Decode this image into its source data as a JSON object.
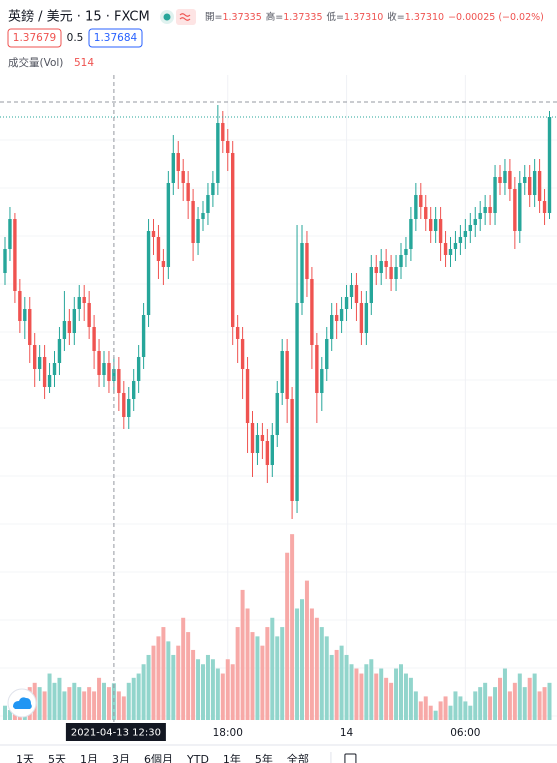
{
  "chart_data": {
    "type": "candlestick",
    "title": "英鎊 / 美元 · 15 · FXCM",
    "ohlc_header": [
      {
        "label": "開=",
        "value": "1.37335"
      },
      {
        "label": "高=",
        "value": "1.37335"
      },
      {
        "label": "低=",
        "value": "1.37310"
      },
      {
        "label": "收=",
        "value": "1.37310"
      }
    ],
    "change": "−0.00025 (−0.02%)",
    "bid": "1.37679",
    "spread": "0.5",
    "ask": "1.37684",
    "volume_label": "成交量(Vol)",
    "crosshair_label": "2021-04-13  12:30",
    "up_color": "#26a69a",
    "down_color": "#ef5350",
    "volume_up_color": "#92d5cc",
    "volume_down_color": "#f7a9a7",
    "ylim": [
      1.3662,
      1.3734
    ],
    "volume_ylim": [
      0,
      2700
    ],
    "categories": [
      null,
      null,
      null,
      null,
      null,
      null,
      null,
      null,
      null,
      null,
      null,
      null,
      null,
      null,
      null,
      null,
      null,
      null,
      null,
      null,
      null,
      null,
      null,
      null,
      null,
      null,
      null,
      null,
      null,
      null,
      null,
      null,
      null,
      null,
      null,
      null,
      null,
      null,
      null,
      null,
      null,
      null,
      null,
      null,
      null,
      "18:00",
      null,
      null,
      null,
      null,
      null,
      null,
      null,
      null,
      null,
      null,
      null,
      null,
      null,
      null,
      null,
      null,
      null,
      null,
      null,
      null,
      null,
      null,
      null,
      "14",
      null,
      null,
      null,
      null,
      null,
      null,
      null,
      null,
      null,
      null,
      null,
      null,
      null,
      null,
      null,
      null,
      null,
      null,
      null,
      null,
      null,
      null,
      null,
      "06:00",
      null,
      null,
      null,
      null,
      null,
      null,
      null,
      null,
      null,
      null,
      null,
      null,
      null,
      null,
      null,
      null,
      null
    ],
    "open": [
      1.3704,
      1.3708,
      1.3713,
      1.3701,
      1.3696,
      1.3698,
      1.3692,
      1.3688,
      1.369,
      1.3685,
      1.3687,
      1.3689,
      1.3693,
      1.3696,
      1.3694,
      1.3698,
      1.37,
      1.3699,
      1.3695,
      1.3691,
      1.3687,
      1.3689,
      1.3686,
      1.3688,
      1.3684,
      1.368,
      1.3683,
      1.3686,
      1.369,
      1.3697,
      1.3711,
      1.371,
      1.3706,
      1.3705,
      1.3719,
      1.3724,
      1.3721,
      1.3719,
      1.3716,
      1.3709,
      1.3713,
      1.3714,
      1.3717,
      1.3719,
      1.3729,
      1.3726,
      1.3724,
      1.3695,
      1.3693,
      1.3688,
      1.3679,
      1.3674,
      1.3677,
      1.3676,
      1.3672,
      1.3677,
      1.3684,
      1.3691,
      1.3683,
      1.3666,
      1.3699,
      1.3709,
      1.3703,
      1.3692,
      1.3684,
      1.3688,
      1.3693,
      1.3697,
      1.3696,
      1.3698,
      1.37,
      1.3702,
      1.3699,
      1.3694,
      1.3699,
      1.3705,
      1.3704,
      1.3706,
      1.3705,
      1.3703,
      1.3705,
      1.3707,
      1.3708,
      1.3713,
      1.3717,
      1.3715,
      1.3713,
      1.3711,
      1.3713,
      1.3709,
      1.3707,
      1.3708,
      1.3709,
      1.371,
      1.3711,
      1.3712,
      1.3713,
      1.3714,
      1.3715,
      1.3714,
      1.372,
      1.3719,
      1.3721,
      1.3718,
      1.3711,
      1.3719,
      1.372,
      1.3717,
      1.3721,
      1.3716,
      1.3714
    ],
    "high": [
      1.371,
      1.3715,
      1.3714,
      1.3703,
      1.37,
      1.37,
      1.3694,
      1.3692,
      1.3692,
      1.3689,
      1.3691,
      1.3695,
      1.3701,
      1.3698,
      1.37,
      1.3702,
      1.3702,
      1.3701,
      1.3697,
      1.3693,
      1.3691,
      1.3691,
      1.369,
      1.369,
      1.3686,
      1.3685,
      1.3688,
      1.3692,
      1.3699,
      1.3713,
      1.3713,
      1.3712,
      1.3708,
      1.3721,
      1.3727,
      1.3726,
      1.3723,
      1.3721,
      1.3718,
      1.3715,
      1.3716,
      1.3719,
      1.3721,
      1.3732,
      1.3731,
      1.3728,
      1.3726,
      1.3697,
      1.3695,
      1.369,
      1.3681,
      1.3679,
      1.3679,
      1.3678,
      1.3679,
      1.3686,
      1.3693,
      1.3693,
      1.3685,
      1.3712,
      1.3712,
      1.3711,
      1.3705,
      1.3694,
      1.369,
      1.3695,
      1.3699,
      1.3699,
      1.37,
      1.3702,
      1.3704,
      1.3704,
      1.3701,
      1.3701,
      1.3707,
      1.3707,
      1.3708,
      1.3708,
      1.3707,
      1.3707,
      1.3709,
      1.371,
      1.3715,
      1.3719,
      1.3719,
      1.3717,
      1.3715,
      1.3715,
      1.3715,
      1.3711,
      1.371,
      1.3711,
      1.3712,
      1.3713,
      1.3714,
      1.3715,
      1.3716,
      1.3717,
      1.3717,
      1.3722,
      1.3722,
      1.3723,
      1.3723,
      1.372,
      1.3721,
      1.3722,
      1.3722,
      1.3723,
      1.3723,
      1.3718,
      1.3731
    ],
    "low": [
      1.3702,
      1.3706,
      1.3699,
      1.3694,
      1.3693,
      1.3689,
      1.3685,
      1.3686,
      1.3683,
      1.3684,
      1.3685,
      1.3687,
      1.3691,
      1.3692,
      1.3692,
      1.3696,
      1.3696,
      1.3693,
      1.3688,
      1.3685,
      1.3685,
      1.3684,
      1.3684,
      1.3681,
      1.3678,
      1.3678,
      1.3681,
      1.3684,
      1.3688,
      1.3695,
      1.3707,
      1.3703,
      1.3702,
      1.3703,
      1.3717,
      1.3718,
      1.3716,
      1.3713,
      1.3706,
      1.3707,
      1.3711,
      1.3712,
      1.3715,
      1.3717,
      1.3724,
      1.3721,
      1.3692,
      1.3689,
      1.3683,
      1.3674,
      1.367,
      1.3672,
      1.3673,
      1.3669,
      1.367,
      1.3675,
      1.3682,
      1.3679,
      1.3663,
      1.3664,
      1.3697,
      1.37,
      1.3688,
      1.3679,
      1.3681,
      1.3686,
      1.3691,
      1.3693,
      1.3694,
      1.3696,
      1.3698,
      1.3696,
      1.3692,
      1.3692,
      1.3697,
      1.3702,
      1.3702,
      1.3703,
      1.3701,
      1.3701,
      1.3703,
      1.3705,
      1.3706,
      1.3711,
      1.3713,
      1.3711,
      1.3709,
      1.3709,
      1.3706,
      1.3705,
      1.3705,
      1.3706,
      1.3707,
      1.3708,
      1.3709,
      1.371,
      1.3711,
      1.3712,
      1.3712,
      1.3712,
      1.3717,
      1.3717,
      1.3716,
      1.3708,
      1.3709,
      1.3717,
      1.3715,
      1.3715,
      1.3714,
      1.3712,
      1.3713
    ],
    "close": [
      1.3708,
      1.3713,
      1.3701,
      1.3696,
      1.3698,
      1.3692,
      1.3688,
      1.369,
      1.3685,
      1.3687,
      1.3689,
      1.3693,
      1.3696,
      1.3694,
      1.3698,
      1.37,
      1.3699,
      1.3695,
      1.3691,
      1.3687,
      1.3689,
      1.3686,
      1.3688,
      1.3684,
      1.368,
      1.3683,
      1.3686,
      1.369,
      1.3697,
      1.3711,
      1.371,
      1.3706,
      1.3705,
      1.3719,
      1.3724,
      1.3721,
      1.3719,
      1.3716,
      1.3709,
      1.3713,
      1.3714,
      1.3717,
      1.3719,
      1.3729,
      1.3726,
      1.3724,
      1.3695,
      1.3693,
      1.3688,
      1.3679,
      1.3674,
      1.3677,
      1.3676,
      1.3672,
      1.3677,
      1.3684,
      1.3691,
      1.3683,
      1.3666,
      1.3699,
      1.3709,
      1.3703,
      1.3692,
      1.3684,
      1.3688,
      1.3693,
      1.3697,
      1.3696,
      1.3698,
      1.37,
      1.3702,
      1.3699,
      1.3694,
      1.3699,
      1.3705,
      1.3704,
      1.3706,
      1.3705,
      1.3703,
      1.3705,
      1.3707,
      1.3708,
      1.3713,
      1.3717,
      1.3715,
      1.3713,
      1.3711,
      1.3713,
      1.3709,
      1.3707,
      1.3708,
      1.3709,
      1.371,
      1.3711,
      1.3712,
      1.3713,
      1.3714,
      1.3715,
      1.3714,
      1.372,
      1.3719,
      1.3721,
      1.3718,
      1.3711,
      1.3719,
      1.372,
      1.3717,
      1.3721,
      1.3716,
      1.3714,
      1.373
    ],
    "volume": [
      200,
      140,
      260,
      200,
      330,
      460,
      520,
      460,
      400,
      650,
      520,
      590,
      400,
      460,
      520,
      460,
      400,
      460,
      400,
      590,
      520,
      460,
      514,
      400,
      330,
      520,
      590,
      650,
      780,
      910,
      1040,
      1170,
      1300,
      1100,
      910,
      1040,
      1430,
      1230,
      980,
      850,
      780,
      910,
      850,
      720,
      650,
      850,
      780,
      1300,
      1820,
      1560,
      1230,
      1170,
      1040,
      1300,
      1430,
      1170,
      1300,
      2340,
      2600,
      1560,
      1690,
      1950,
      1560,
      1430,
      1300,
      1170,
      910,
      980,
      1040,
      910,
      780,
      720,
      650,
      780,
      850,
      650,
      720,
      590,
      520,
      720,
      780,
      650,
      590,
      400,
      260,
      330,
      200,
      130,
      260,
      330,
      200,
      400,
      330,
      260,
      200,
      400,
      460,
      520,
      330,
      460,
      590,
      720,
      400,
      520,
      650,
      460,
      590,
      650,
      400,
      460,
      520
    ],
    "toolbar": [
      "1天",
      "5天",
      "1月",
      "3月",
      "6個月",
      "YTD",
      "1年",
      "5年",
      "全部"
    ]
  }
}
